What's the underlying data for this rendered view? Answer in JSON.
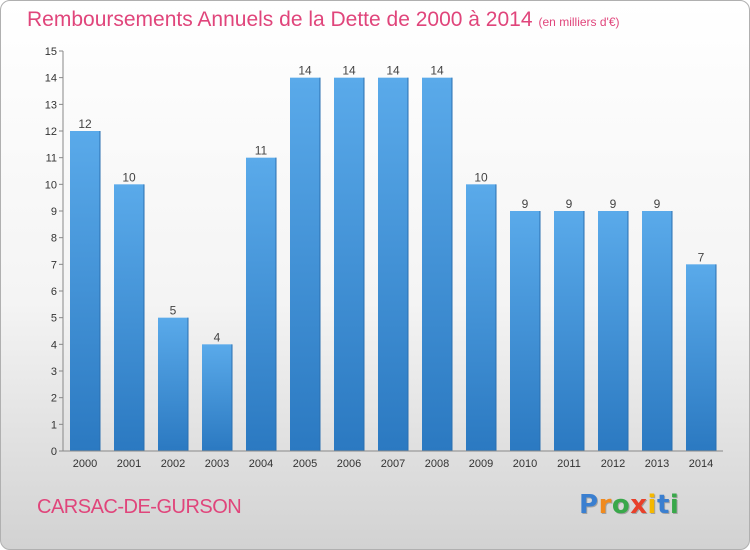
{
  "title": "Remboursements Annuels de la Dette de 2000 à 2014",
  "subtitle": "(en milliers d'€)",
  "commune": "CARSAC-DE-GURSON",
  "logo": {
    "letters": [
      "P",
      "r",
      "o",
      "x",
      "i",
      "t",
      "i"
    ],
    "colors": [
      "#3a7fd0",
      "#f08a1e",
      "#39a84a",
      "#e8402a",
      "#f5b800",
      "#3a7fd0",
      "#39a84a"
    ]
  },
  "colors": {
    "bar": "#4d9fe3",
    "bar_dark": "#2d7cc4",
    "title": "#e0457b"
  },
  "chart_data": {
    "type": "bar",
    "categories": [
      "2000",
      "2001",
      "2002",
      "2003",
      "2004",
      "2005",
      "2006",
      "2007",
      "2008",
      "2009",
      "2010",
      "2011",
      "2012",
      "2013",
      "2014"
    ],
    "values": [
      12,
      10,
      5,
      4,
      11,
      14,
      14,
      14,
      14,
      10,
      9,
      9,
      9,
      9,
      7
    ],
    "ylim": [
      0,
      15
    ],
    "yticks": [
      0,
      1,
      2,
      3,
      4,
      5,
      6,
      7,
      8,
      9,
      10,
      11,
      12,
      13,
      14,
      15
    ],
    "grid": false
  }
}
